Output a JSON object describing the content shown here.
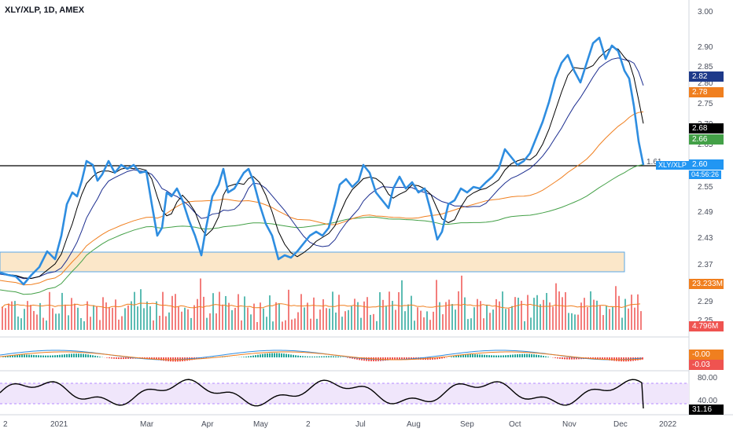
{
  "title": "XLY/XLP, 1D, AMEX",
  "colors": {
    "main_line": "#2e8de0",
    "ma_black": "#000000",
    "ma_navy": "#1b2d8f",
    "ma_orange": "#f07f1f",
    "ma_green": "#43a047",
    "vol_up": "#26a69a",
    "vol_down": "#ef5350",
    "box_fill": "#fbe7c9",
    "box_border": "#5aa7e6",
    "rsi_fill": "#f0e6fb",
    "rsi_border": "#b388ff"
  },
  "price_axis": {
    "ticks": [
      "3.00",
      "2.90",
      "2.85",
      "2.80",
      "2.75",
      "2.70",
      "2.65",
      "2.60",
      "2.55",
      "2.49",
      "2.43",
      "2.37",
      "2.29",
      "2.25"
    ]
  },
  "badges": {
    "b_282": {
      "text": "2.82",
      "color": "#1e3a8a"
    },
    "b_278": {
      "text": "2.78",
      "color": "#f07f1f"
    },
    "b_268": {
      "text": "2.68",
      "color": "#000000"
    },
    "b_266": {
      "text": "2.66",
      "color": "#43a047"
    },
    "b_260": {
      "text": "2.60",
      "color": "#2196f3"
    },
    "b_time": {
      "text": "04:56:26",
      "color": "#2196f3"
    },
    "b_vol1": {
      "text": "23.233M",
      "color": "#f07f1f"
    },
    "b_vol2": {
      "text": "4.796M",
      "color": "#ef5350"
    },
    "b_macd1": {
      "text": "-0.00",
      "color": "#f07f1f"
    },
    "b_macd2": {
      "text": "-0.03",
      "color": "#ef5350"
    },
    "b_rsi": {
      "text": "31.16",
      "color": "#000000"
    }
  },
  "symbol_label": "XLY/XLP",
  "level_label": "1.61",
  "rsi_axis": {
    "top": "80.00",
    "mid": "40.00"
  },
  "x_axis": {
    "labels": [
      "2",
      "2021",
      "Mar",
      "Apr",
      "May",
      "2",
      "Jul",
      "Aug",
      "Sep",
      "Oct",
      "Nov",
      "Dec",
      "2022"
    ]
  }
}
